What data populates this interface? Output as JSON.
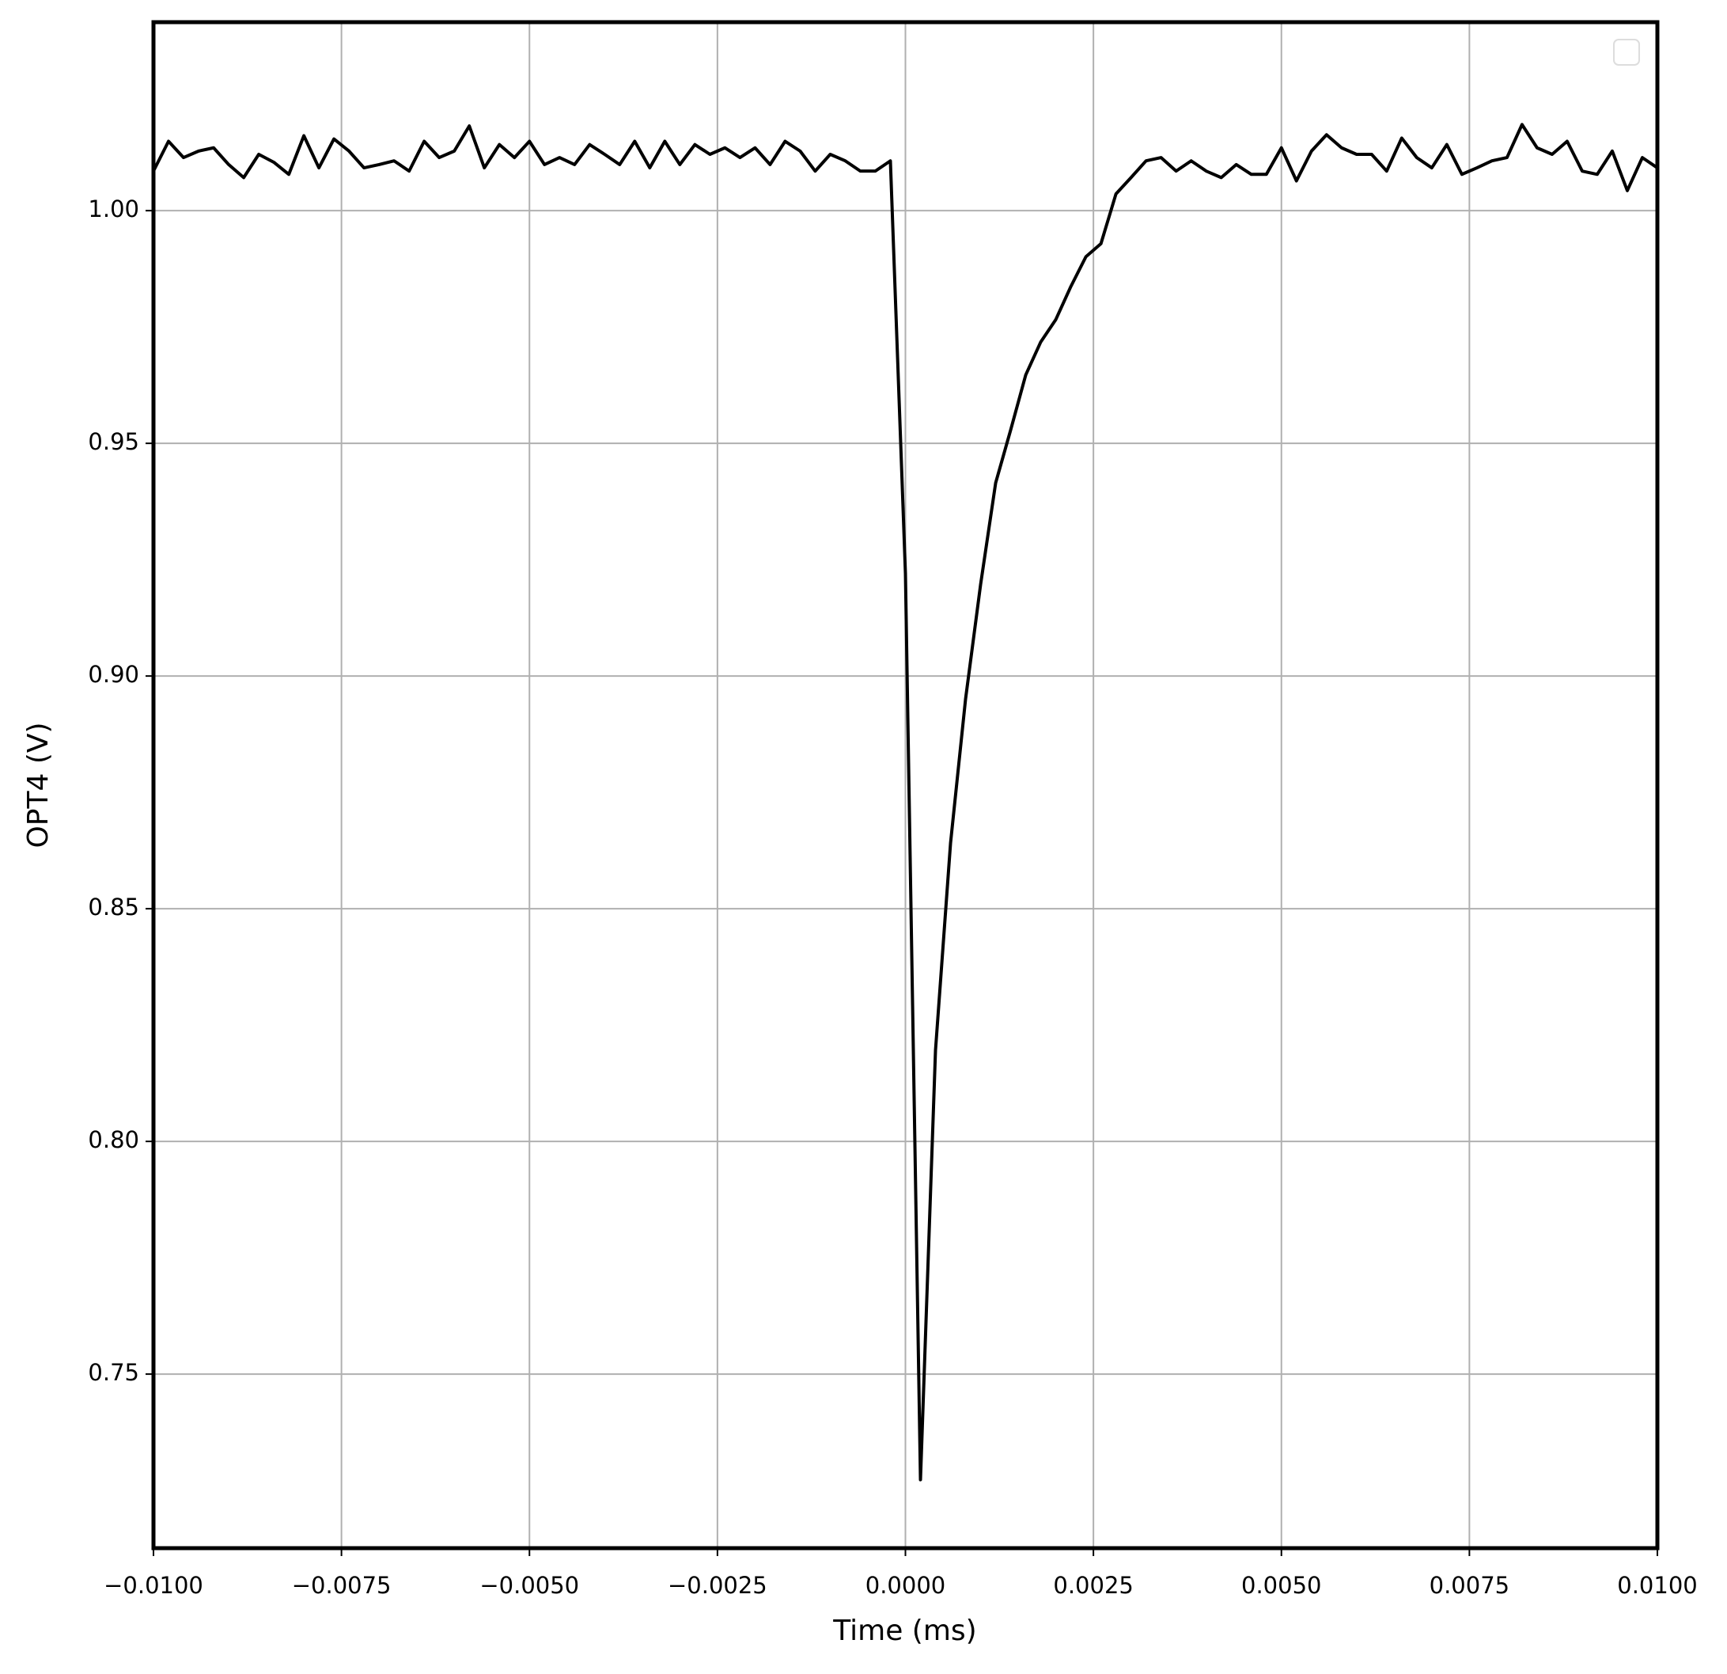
{
  "chart_data": {
    "type": "line",
    "x_label": "Time (ms)",
    "y_label": "OPT4 (V)",
    "x": [
      -0.01,
      -0.0098,
      -0.0096,
      -0.0094,
      -0.0092,
      -0.009,
      -0.0088,
      -0.0086,
      -0.0084,
      -0.0082,
      -0.008,
      -0.0078,
      -0.0076,
      -0.0074,
      -0.0072,
      -0.007,
      -0.0068,
      -0.0066,
      -0.0064,
      -0.0062,
      -0.006,
      -0.0058,
      -0.0056,
      -0.0054,
      -0.0052,
      -0.005,
      -0.0048,
      -0.0046,
      -0.0044,
      -0.0042,
      -0.004,
      -0.0038,
      -0.0036,
      -0.0034,
      -0.0032,
      -0.003,
      -0.0028,
      -0.0026,
      -0.0024,
      -0.0022,
      -0.002,
      -0.0018,
      -0.0016,
      -0.0014,
      -0.0012,
      -0.001,
      -0.0008,
      -0.0006,
      -0.0004,
      -0.0002,
      0,
      0.0002,
      0.0004,
      0.0006,
      0.0008,
      0.001,
      0.0012,
      0.0014,
      0.0016,
      0.0018,
      0.002,
      0.0022,
      0.0024,
      0.0026,
      0.0028,
      0.003,
      0.0032,
      0.0034,
      0.0036,
      0.0038,
      0.004,
      0.0042,
      0.0044,
      0.0046,
      0.0048,
      0.005,
      0.0052,
      0.0054,
      0.0056,
      0.0058,
      0.006,
      0.0062,
      0.0064,
      0.0066,
      0.0068,
      0.007,
      0.0072,
      0.0074,
      0.0076,
      0.0078,
      0.008,
      0.0082,
      0.0084,
      0.0086,
      0.0088,
      0.009,
      0.0092,
      0.0094,
      0.0096,
      0.0098,
      0.01
    ],
    "series": [
      {
        "color": "#000000",
        "values": [
          1.0085,
          1.0149,
          1.0114,
          1.0128,
          1.0135,
          1.0099,
          1.0071,
          1.0121,
          1.0104,
          1.0078,
          1.0161,
          1.0092,
          1.0154,
          1.0128,
          1.0092,
          1.0099,
          1.0107,
          1.0085,
          1.0149,
          1.0114,
          1.0128,
          1.0182,
          1.0092,
          1.0142,
          1.0114,
          1.0149,
          1.0099,
          1.0114,
          1.0099,
          1.0142,
          1.0121,
          1.0099,
          1.0149,
          1.0092,
          1.0149,
          1.0099,
          1.0142,
          1.0121,
          1.0135,
          1.0114,
          1.0135,
          1.0099,
          1.0149,
          1.0128,
          1.0085,
          1.0121,
          1.0107,
          1.0085,
          1.0085,
          1.0107,
          0.9221,
          0.7273,
          0.8196,
          0.8641,
          0.8951,
          0.9197,
          0.9415,
          0.9529,
          0.9647,
          0.9718,
          0.9766,
          0.9837,
          0.9901,
          0.9929,
          1.0036,
          1.0071,
          1.0107,
          1.0114,
          1.0085,
          1.0107,
          1.0085,
          1.0071,
          1.0099,
          1.0078,
          1.0078,
          1.0135,
          1.0064,
          1.0128,
          1.0163,
          1.0135,
          1.0121,
          1.0121,
          1.0085,
          1.0156,
          1.0114,
          1.0092,
          1.0142,
          1.0078,
          1.0092,
          1.0107,
          1.0114,
          1.0185,
          1.0135,
          1.0121,
          1.0149,
          1.0085,
          1.0078,
          1.0128,
          1.0043,
          1.0114,
          1.0092
        ]
      }
    ],
    "xlim": [
      -0.01,
      0.01
    ],
    "xticks": [
      {
        "value": -0.01,
        "label": "−0.0100"
      },
      {
        "value": -0.0075,
        "label": "−0.0075"
      },
      {
        "value": -0.005,
        "label": "−0.0050"
      },
      {
        "value": -0.0025,
        "label": "−0.0025"
      },
      {
        "value": 0,
        "label": "0.0000"
      },
      {
        "value": 0.0025,
        "label": "0.0025"
      },
      {
        "value": 0.005,
        "label": "0.0050"
      },
      {
        "value": 0.0075,
        "label": "0.0075"
      },
      {
        "value": 0.01,
        "label": "0.0100"
      }
    ],
    "ylim": [
      0.7126,
      1.0405
    ],
    "yticks": [
      {
        "value": 0.75,
        "label": "0.75"
      },
      {
        "value": 0.8,
        "label": "0.80"
      },
      {
        "value": 0.85,
        "label": "0.85"
      },
      {
        "value": 0.9,
        "label": "0.90"
      },
      {
        "value": 0.95,
        "label": "0.95"
      },
      {
        "value": 1.0,
        "label": "1.00"
      }
    ],
    "grid": true
  }
}
